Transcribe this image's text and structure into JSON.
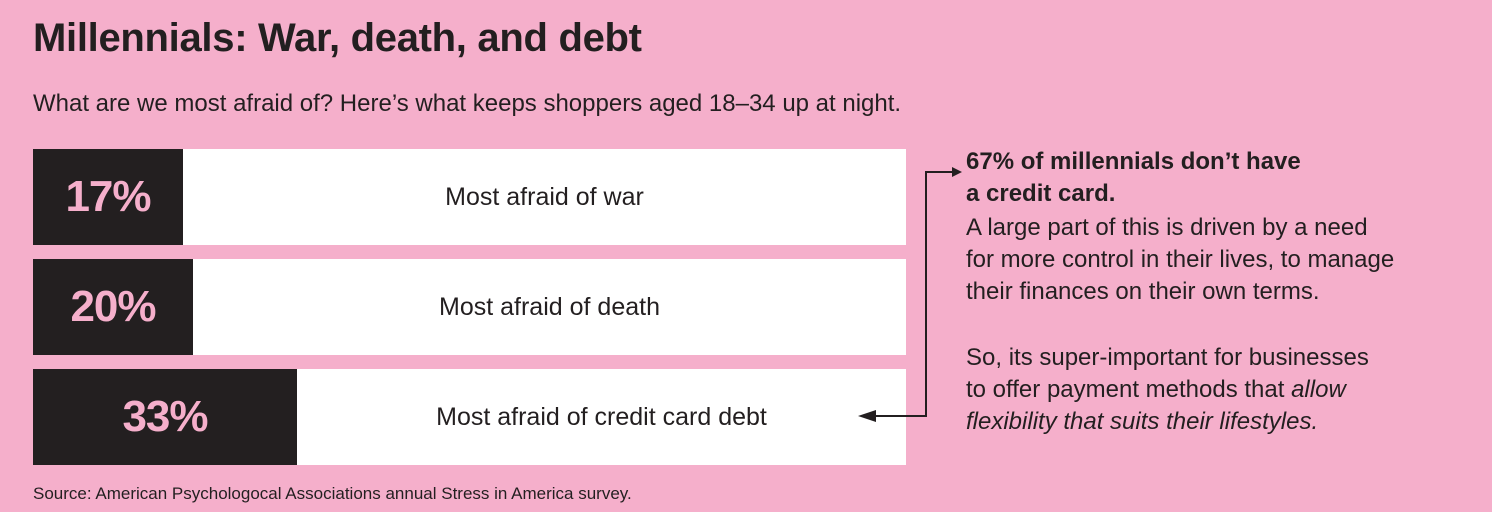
{
  "title": "Millennials: War, death, and debt",
  "subtitle": "What are we most afraid of? Here’s what keeps shoppers aged 18–34 up at night.",
  "chart_data": {
    "type": "bar",
    "orientation": "horizontal",
    "categories": [
      "Most afraid of war",
      "Most afraid of death",
      "Most afraid of credit card debt"
    ],
    "values": [
      17,
      20,
      33
    ],
    "value_labels": [
      "17%",
      "20%",
      "33%"
    ],
    "unit": "%"
  },
  "note": {
    "headline_line1": "67% of millennials don’t have",
    "headline_line2": "a credit card.",
    "para1_line1": "A large part of this is driven by a need",
    "para1_line2": "for more control in their lives, to manage",
    "para1_line3": "their finances on their own terms.",
    "para2_line1": "So, its super-important for businesses",
    "para2_line2_prefix": "to offer payment methods that ",
    "para2_line2_italic": "allow",
    "para2_line3_italic": "flexibility that suits their lifestyles."
  },
  "source": "Source: American Psychologocal Associations annual Stress in America survey.",
  "colors": {
    "background": "#f5afcb",
    "bar_dark": "#231f20",
    "bar_track": "#ffffff",
    "value_text": "#f5afcb"
  }
}
